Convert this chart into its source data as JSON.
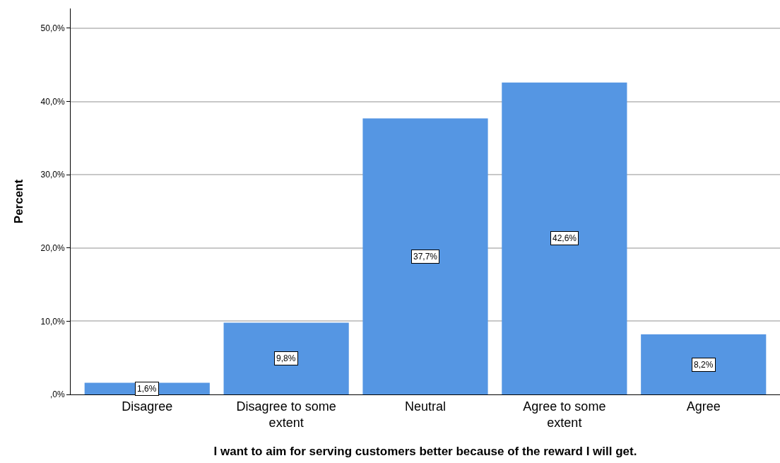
{
  "chart_data": {
    "type": "bar",
    "xlabel": "I want to aim for serving customers better because of the reward I will get.",
    "ylabel": "Percent",
    "categories": [
      "Disagree",
      "Disagree to some extent",
      "Neutral",
      "Agree to some extent",
      "Agree"
    ],
    "values": [
      1.6,
      9.8,
      37.7,
      42.6,
      8.2
    ],
    "value_labels": [
      "1,6%",
      "9,8%",
      "37,7%",
      "42,6%",
      "8,2%"
    ],
    "color": "#5596e3",
    "ylim": [
      0,
      52.7
    ],
    "yticks": [
      {
        "value": 0,
        "label": ",0%"
      },
      {
        "value": 10,
        "label": "10,0%"
      },
      {
        "value": 20,
        "label": "20,0%"
      },
      {
        "value": 30,
        "label": "30,0%"
      },
      {
        "value": 40,
        "label": "40,0%"
      },
      {
        "value": 50,
        "label": "50,0%"
      }
    ],
    "grid": "y"
  }
}
